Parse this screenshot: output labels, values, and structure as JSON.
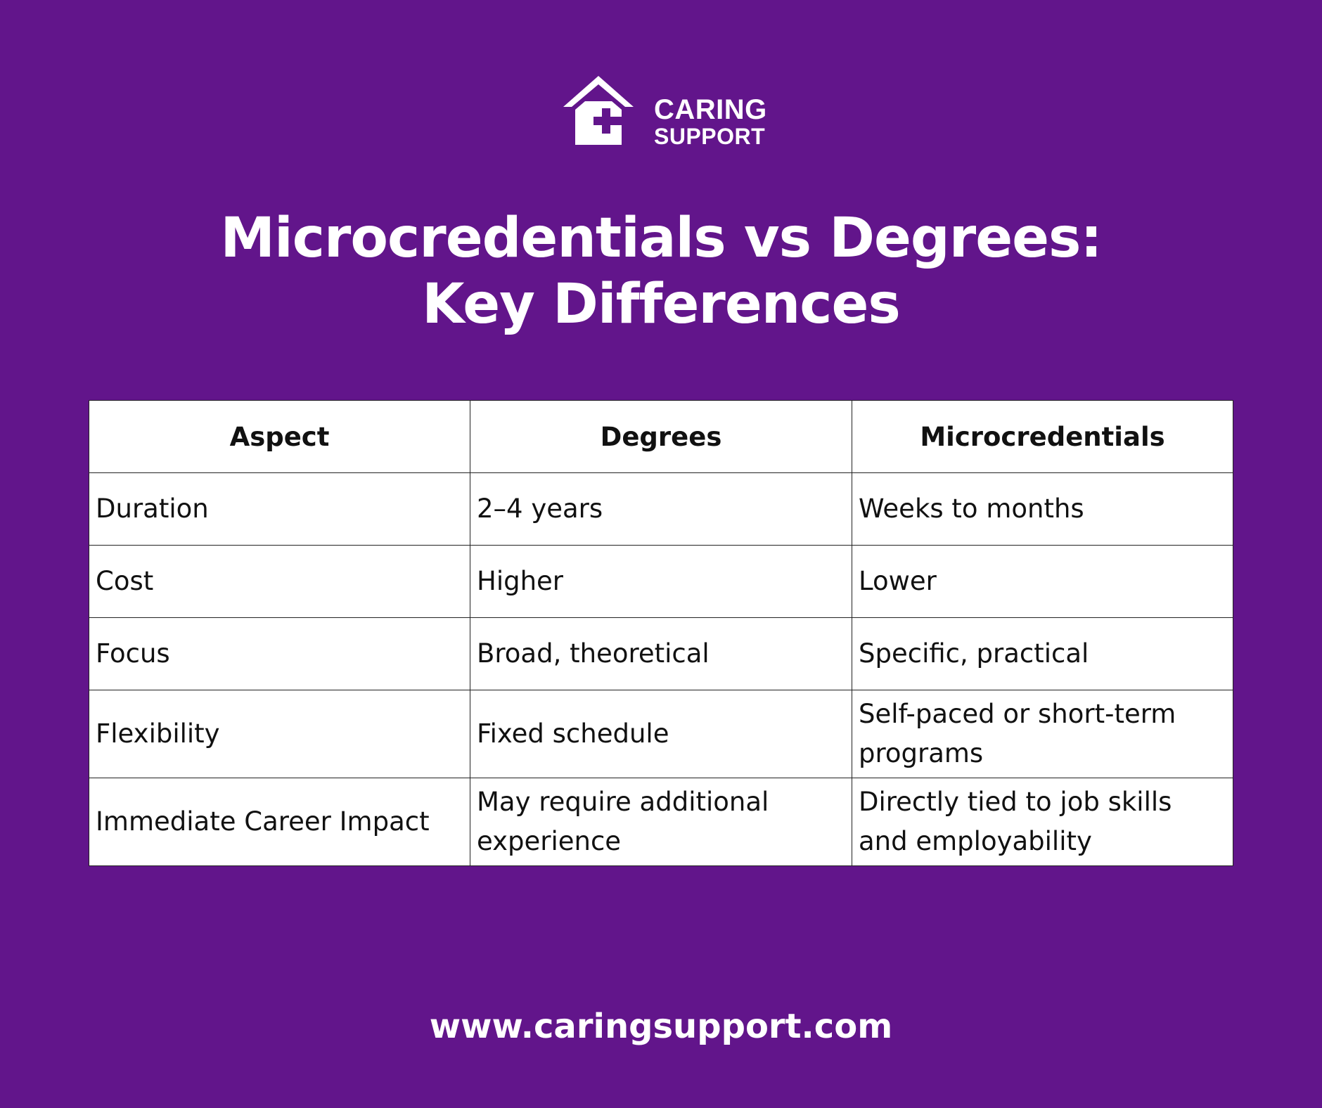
{
  "brand": {
    "logo_line1": "CARING",
    "logo_line2": "SUPPORT",
    "background_color": "#62158b"
  },
  "title": {
    "line1": "Microcredentials vs Degrees:",
    "line2": "Key Differences"
  },
  "table": {
    "headers": [
      "Aspect",
      "Degrees",
      "Microcredentials"
    ],
    "rows": [
      [
        "Duration",
        "2–4 years",
        "Weeks to months"
      ],
      [
        "Cost",
        "Higher",
        "Lower"
      ],
      [
        "Focus",
        "Broad, theoretical",
        "Specific, practical"
      ],
      [
        "Flexibility",
        "Fixed schedule",
        "Self-paced or short-term programs"
      ],
      [
        "Immediate Career Impact",
        "May require additional experience",
        "Directly tied to job skills and employability"
      ]
    ]
  },
  "footer": {
    "url": "www.caringsupport.com"
  }
}
